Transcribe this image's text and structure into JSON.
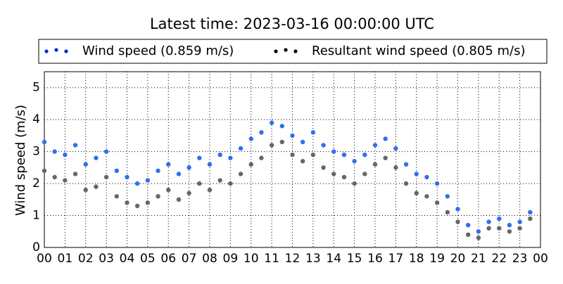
{
  "chart_data": {
    "type": "scatter",
    "title": "Latest time: 2023-03-16 00:00:00 UTC",
    "y_label": "Wind speed (m/s)",
    "x": [
      0,
      0.5,
      1,
      1.5,
      2,
      2.5,
      3,
      3.5,
      4,
      4.5,
      5,
      5.5,
      6,
      6.5,
      7,
      7.5,
      8,
      8.5,
      9,
      9.5,
      10,
      10.5,
      11,
      11.5,
      12,
      12.5,
      13,
      13.5,
      14,
      14.5,
      15,
      15.5,
      16,
      16.5,
      17,
      17.5,
      18,
      18.5,
      19,
      19.5,
      20,
      20.5,
      21,
      21.5,
      22,
      22.5,
      23,
      23.5
    ],
    "series": [
      {
        "name": "Wind speed (0.859 m/s)",
        "color": "#2f6ff0",
        "values": [
          3.3,
          3.0,
          2.9,
          3.2,
          2.6,
          2.8,
          3.0,
          2.4,
          2.2,
          2.0,
          2.1,
          2.4,
          2.6,
          2.3,
          2.5,
          2.8,
          2.6,
          2.9,
          2.8,
          3.1,
          3.4,
          3.6,
          3.9,
          3.8,
          3.5,
          3.3,
          3.6,
          3.2,
          3.0,
          2.9,
          2.7,
          2.9,
          3.2,
          3.4,
          3.1,
          2.6,
          2.3,
          2.2,
          2.0,
          1.6,
          1.2,
          0.7,
          0.5,
          0.8,
          0.9,
          0.7,
          0.8,
          1.1
        ]
      },
      {
        "name": "Resultant wind speed (0.805 m/s)",
        "color": "#666666",
        "values": [
          2.4,
          2.2,
          2.1,
          2.3,
          1.8,
          1.9,
          2.2,
          1.6,
          1.4,
          1.3,
          1.4,
          1.6,
          1.8,
          1.5,
          1.7,
          2.0,
          1.8,
          2.1,
          2.0,
          2.3,
          2.6,
          2.8,
          3.2,
          3.3,
          2.9,
          2.7,
          2.9,
          2.5,
          2.3,
          2.2,
          2.0,
          2.3,
          2.6,
          2.8,
          2.5,
          2.0,
          1.7,
          1.6,
          1.4,
          1.1,
          0.8,
          0.4,
          0.3,
          0.6,
          0.6,
          0.5,
          0.6,
          0.9
        ]
      }
    ],
    "xlim": [
      0,
      24
    ],
    "xticks": [
      {
        "value": 0,
        "label": "00"
      },
      {
        "value": 1,
        "label": "01"
      },
      {
        "value": 2,
        "label": "02"
      },
      {
        "value": 3,
        "label": "03"
      },
      {
        "value": 4,
        "label": "04"
      },
      {
        "value": 5,
        "label": "05"
      },
      {
        "value": 6,
        "label": "06"
      },
      {
        "value": 7,
        "label": "07"
      },
      {
        "value": 8,
        "label": "08"
      },
      {
        "value": 9,
        "label": "09"
      },
      {
        "value": 10,
        "label": "10"
      },
      {
        "value": 11,
        "label": "11"
      },
      {
        "value": 12,
        "label": "12"
      },
      {
        "value": 13,
        "label": "13"
      },
      {
        "value": 14,
        "label": "14"
      },
      {
        "value": 15,
        "label": "15"
      },
      {
        "value": 16,
        "label": "16"
      },
      {
        "value": 17,
        "label": "17"
      },
      {
        "value": 18,
        "label": "18"
      },
      {
        "value": 19,
        "label": "19"
      },
      {
        "value": 20,
        "label": "20"
      },
      {
        "value": 21,
        "label": "21"
      },
      {
        "value": 22,
        "label": "22"
      },
      {
        "value": 23,
        "label": "23"
      },
      {
        "value": 24,
        "label": "00"
      }
    ],
    "ylim": [
      0,
      5.5
    ],
    "yticks": [
      0,
      1,
      2,
      3,
      4,
      5
    ],
    "grid": true,
    "legend": "top"
  }
}
